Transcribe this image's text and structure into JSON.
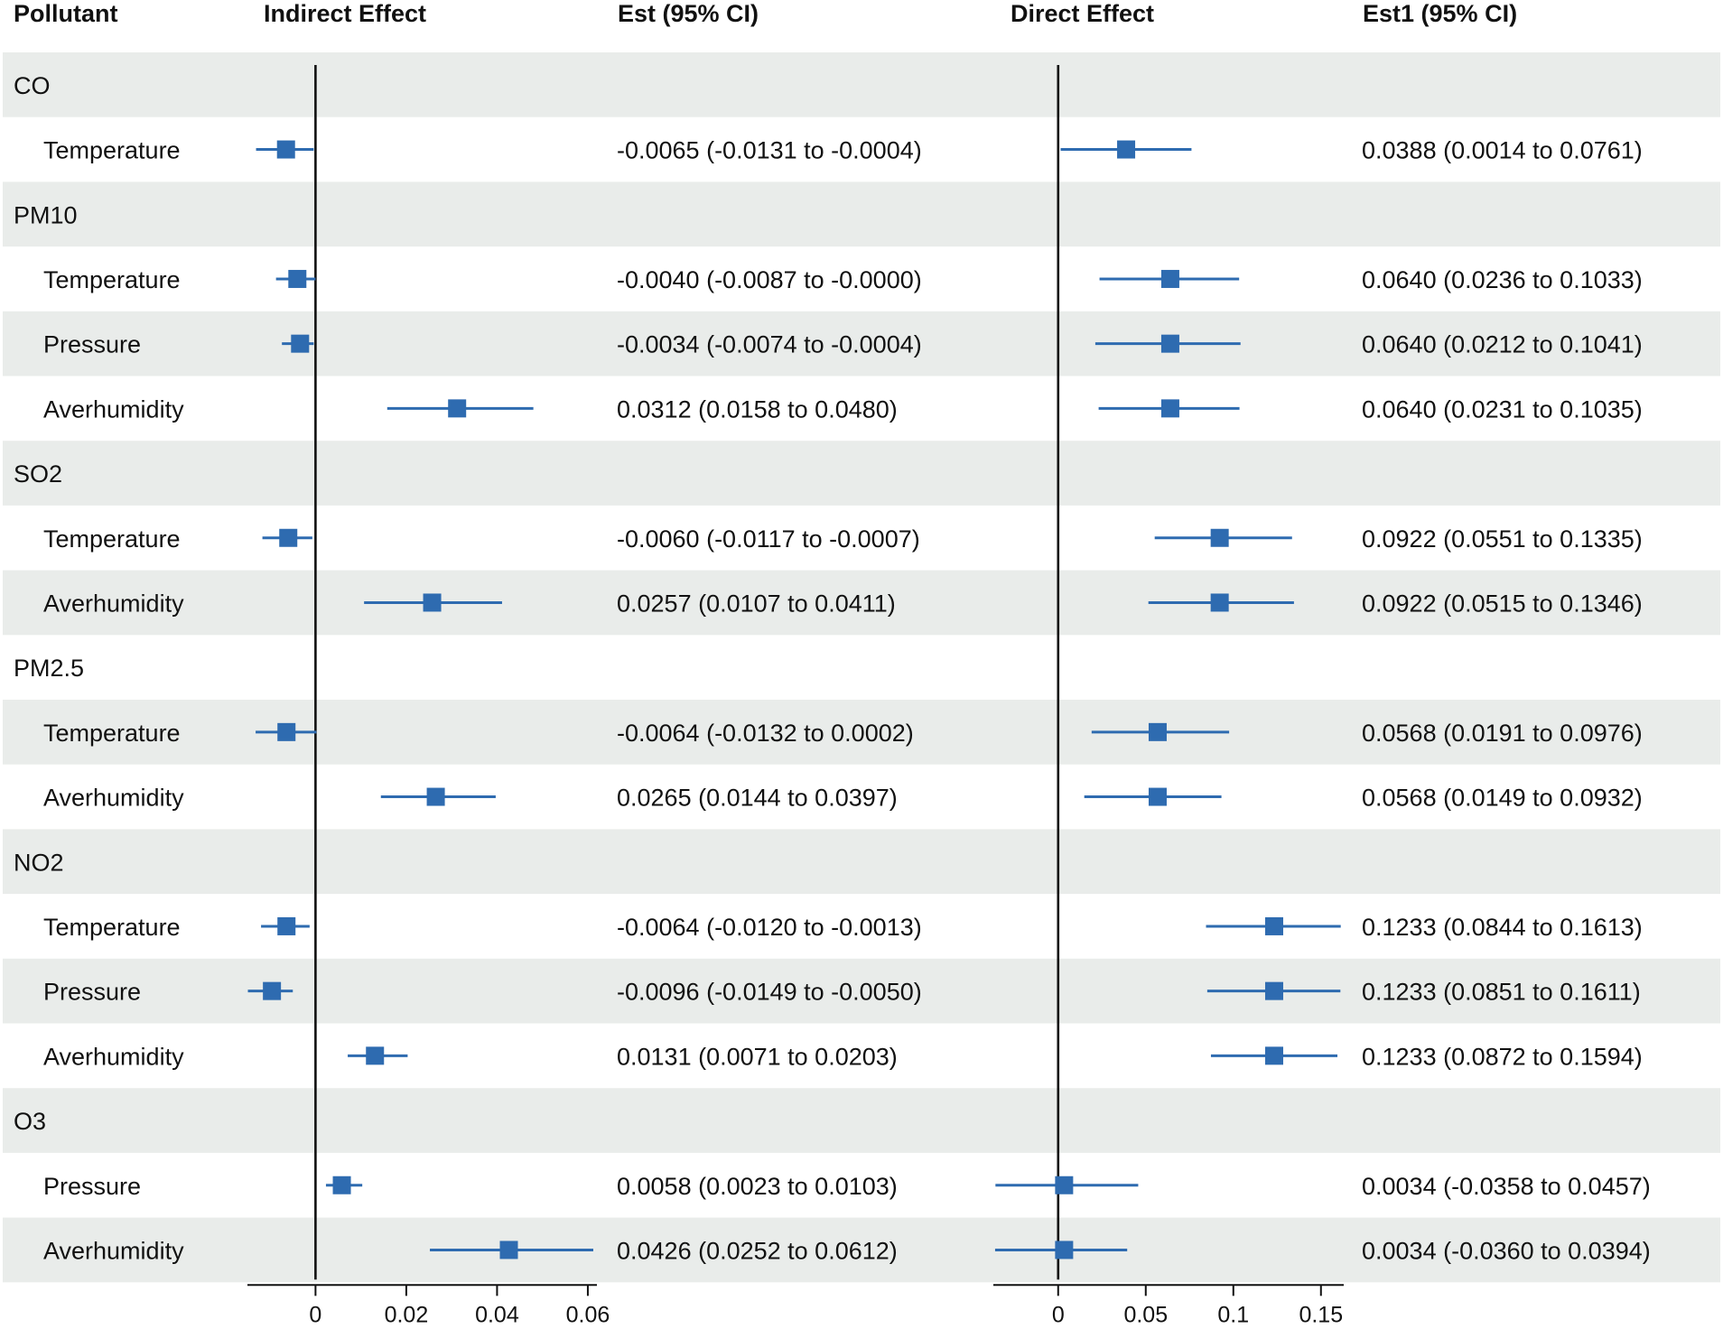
{
  "colors": {
    "marker": "#2e6bb0",
    "band": "#e9ecea",
    "axis": "#111111"
  },
  "chart_data": {
    "type": "forest",
    "columns": {
      "pollutant": "Pollutant",
      "indirect_plot": "Indirect Effect",
      "indirect_est": "Est (95% CI)",
      "direct_plot": "Direct Effect",
      "direct_est": "Est1 (95% CI)"
    },
    "indirect_axis": {
      "min": -0.015,
      "max": 0.062,
      "ticks": [
        0,
        0.02,
        0.04,
        0.06
      ],
      "tick_labels": [
        "0",
        "0.02",
        "0.04",
        "0.06"
      ]
    },
    "direct_axis": {
      "min": -0.037,
      "max": 0.163,
      "ticks": [
        0,
        0.05,
        0.1,
        0.15
      ],
      "tick_labels": [
        "0",
        "0.05",
        "0.1",
        "0.15"
      ]
    },
    "rows": [
      {
        "kind": "group",
        "label": "CO"
      },
      {
        "kind": "item",
        "label": "Temperature",
        "ind": [
          -0.0065,
          -0.0131,
          -0.0004
        ],
        "ind_text": "-0.0065 (-0.0131 to -0.0004)",
        "dir": [
          0.0388,
          0.0014,
          0.0761
        ],
        "dir_text": "0.0388 (0.0014 to 0.0761)"
      },
      {
        "kind": "group",
        "label": "PM10"
      },
      {
        "kind": "item",
        "label": "Temperature",
        "ind": [
          -0.004,
          -0.0087,
          -0.0
        ],
        "ind_text": "-0.0040 (-0.0087 to -0.0000)",
        "dir": [
          0.064,
          0.0236,
          0.1033
        ],
        "dir_text": "0.0640 (0.0236 to 0.1033)"
      },
      {
        "kind": "item",
        "label": "Pressure",
        "ind": [
          -0.0034,
          -0.0074,
          -0.0004
        ],
        "ind_text": "-0.0034 (-0.0074 to -0.0004)",
        "dir": [
          0.064,
          0.0212,
          0.1041
        ],
        "dir_text": "0.0640 (0.0212 to 0.1041)"
      },
      {
        "kind": "item",
        "label": "Averhumidity",
        "ind": [
          0.0312,
          0.0158,
          0.048
        ],
        "ind_text": "0.0312 (0.0158 to 0.0480)",
        "dir": [
          0.064,
          0.0231,
          0.1035
        ],
        "dir_text": "0.0640 (0.0231 to 0.1035)"
      },
      {
        "kind": "group",
        "label": "SO2"
      },
      {
        "kind": "item",
        "label": "Temperature",
        "ind": [
          -0.006,
          -0.0117,
          -0.0007
        ],
        "ind_text": "-0.0060 (-0.0117 to -0.0007)",
        "dir": [
          0.0922,
          0.0551,
          0.1335
        ],
        "dir_text": "0.0922 (0.0551 to 0.1335)"
      },
      {
        "kind": "item",
        "label": "Averhumidity",
        "ind": [
          0.0257,
          0.0107,
          0.0411
        ],
        "ind_text": "0.0257 (0.0107 to 0.0411)",
        "dir": [
          0.0922,
          0.0515,
          0.1346
        ],
        "dir_text": "0.0922 (0.0515 to 0.1346)"
      },
      {
        "kind": "group",
        "label": "PM2.5"
      },
      {
        "kind": "item",
        "label": "Temperature",
        "ind": [
          -0.0064,
          -0.0132,
          0.0002
        ],
        "ind_text": "-0.0064 (-0.0132 to 0.0002)",
        "dir": [
          0.0568,
          0.0191,
          0.0976
        ],
        "dir_text": "0.0568 (0.0191 to 0.0976)"
      },
      {
        "kind": "item",
        "label": "Averhumidity",
        "ind": [
          0.0265,
          0.0144,
          0.0397
        ],
        "ind_text": "0.0265 (0.0144 to 0.0397)",
        "dir": [
          0.0568,
          0.0149,
          0.0932
        ],
        "dir_text": "0.0568 (0.0149 to 0.0932)"
      },
      {
        "kind": "group",
        "label": "NO2"
      },
      {
        "kind": "item",
        "label": "Temperature",
        "ind": [
          -0.0064,
          -0.012,
          -0.0013
        ],
        "ind_text": "-0.0064 (-0.0120 to -0.0013)",
        "dir": [
          0.1233,
          0.0844,
          0.1613
        ],
        "dir_text": "0.1233 (0.0844 to 0.1613)"
      },
      {
        "kind": "item",
        "label": "Pressure",
        "ind": [
          -0.0096,
          -0.0149,
          -0.005
        ],
        "ind_text": "-0.0096 (-0.0149 to -0.0050)",
        "dir": [
          0.1233,
          0.0851,
          0.1611
        ],
        "dir_text": "0.1233 (0.0851 to 0.1611)"
      },
      {
        "kind": "item",
        "label": "Averhumidity",
        "ind": [
          0.0131,
          0.0071,
          0.0203
        ],
        "ind_text": "0.0131 (0.0071 to 0.0203)",
        "dir": [
          0.1233,
          0.0872,
          0.1594
        ],
        "dir_text": "0.1233 (0.0872 to 0.1594)"
      },
      {
        "kind": "group",
        "label": "O3"
      },
      {
        "kind": "item",
        "label": "Pressure",
        "ind": [
          0.0058,
          0.0023,
          0.0103
        ],
        "ind_text": "0.0058 (0.0023 to 0.0103)",
        "dir": [
          0.0034,
          -0.0358,
          0.0457
        ],
        "dir_text": "0.0034 (-0.0358 to 0.0457)"
      },
      {
        "kind": "item",
        "label": "Averhumidity",
        "ind": [
          0.0426,
          0.0252,
          0.0612
        ],
        "ind_text": "0.0426 (0.0252 to 0.0612)",
        "dir": [
          0.0034,
          -0.036,
          0.0394
        ],
        "dir_text": "0.0034 (-0.0360 to 0.0394)"
      }
    ]
  }
}
